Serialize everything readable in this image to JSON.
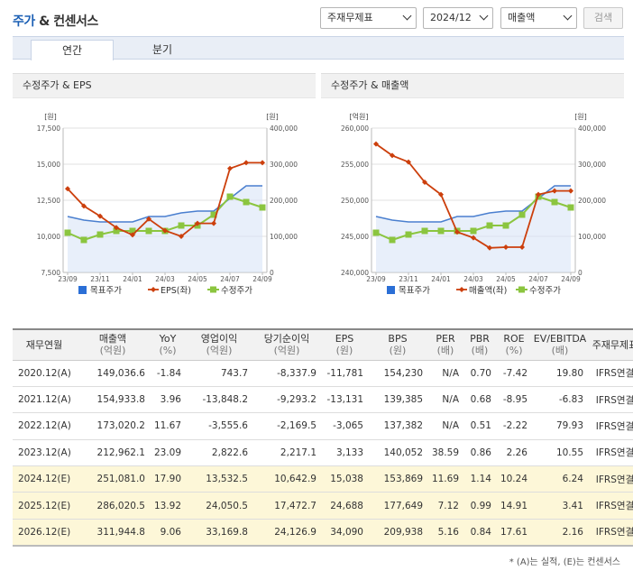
{
  "header": {
    "title_main": "주가",
    "title_rest": "& 컨센서스",
    "select_report": "주재무제표",
    "select_period": "2024/12",
    "select_metric": "매출액",
    "search_button": "검색"
  },
  "tabs": [
    {
      "label": "연간",
      "active": true
    },
    {
      "label": "분기",
      "active": false
    }
  ],
  "charts": [
    {
      "title": "수정주가 & EPS",
      "left_unit": "[원]",
      "right_unit": "[원]",
      "left_ticks": [
        "17,500",
        "15,000",
        "12,500",
        "10,000",
        "7,500"
      ],
      "right_ticks": [
        "400,000",
        "300,000",
        "200,000",
        "100,000",
        "0"
      ],
      "x_ticks": [
        "23/09",
        "23/11",
        "24/01",
        "24/03",
        "24/05",
        "24/07",
        "24/09"
      ],
      "legend": [
        "목표주가",
        "EPS(좌)",
        "수정주가"
      ]
    },
    {
      "title": "수정주가 & 매출액",
      "left_unit": "[억원]",
      "right_unit": "[원]",
      "left_ticks": [
        "260,000",
        "255,000",
        "250,000",
        "245,000",
        "240,000"
      ],
      "right_ticks": [
        "400,000",
        "300,000",
        "200,000",
        "100,000",
        "0"
      ],
      "x_ticks": [
        "23/09",
        "23/11",
        "24/01",
        "24/03",
        "24/05",
        "24/07",
        "24/09"
      ],
      "legend": [
        "목표주가",
        "매출액(좌)",
        "수정주가"
      ]
    }
  ],
  "chart_data": [
    {
      "type": "line",
      "title": "수정주가 & EPS",
      "y_left": {
        "label": "[원]",
        "range": [
          7500,
          17500
        ]
      },
      "y_right": {
        "label": "[원]",
        "range": [
          0,
          400000
        ]
      },
      "x": [
        "23/09",
        "23/10",
        "23/11",
        "23/12",
        "24/01",
        "24/02",
        "24/03",
        "24/04",
        "24/05",
        "24/06",
        "24/07",
        "24/08",
        "24/09"
      ],
      "series": [
        {
          "name": "목표주가",
          "axis": "right",
          "color": "#4a7fcf",
          "values": [
            155000,
            145000,
            140000,
            140000,
            140000,
            155000,
            155000,
            165000,
            170000,
            170000,
            205000,
            240000,
            240000
          ]
        },
        {
          "name": "EPS(좌)",
          "axis": "left",
          "color": "#cc3f0c",
          "values": [
            13300,
            12100,
            11400,
            10600,
            10100,
            11200,
            10400,
            10000,
            10900,
            10900,
            14700,
            15100,
            15100
          ]
        },
        {
          "name": "수정주가",
          "axis": "right",
          "color": "#8bc53f",
          "values": [
            110000,
            90000,
            105000,
            115000,
            115000,
            115000,
            115000,
            130000,
            130000,
            160000,
            210000,
            195000,
            180000
          ]
        }
      ]
    },
    {
      "type": "line",
      "title": "수정주가 & 매출액",
      "y_left": {
        "label": "[억원]",
        "range": [
          240000,
          260000
        ]
      },
      "y_right": {
        "label": "[원]",
        "range": [
          0,
          400000
        ]
      },
      "x": [
        "23/09",
        "23/10",
        "23/11",
        "23/12",
        "24/01",
        "24/02",
        "24/03",
        "24/04",
        "24/05",
        "24/06",
        "24/07",
        "24/08",
        "24/09"
      ],
      "series": [
        {
          "name": "목표주가",
          "axis": "right",
          "color": "#4a7fcf",
          "values": [
            155000,
            145000,
            140000,
            140000,
            140000,
            155000,
            155000,
            165000,
            170000,
            170000,
            205000,
            240000,
            240000
          ]
        },
        {
          "name": "매출액(좌)",
          "axis": "left",
          "color": "#cc3f0c",
          "values": [
            257800,
            256200,
            255300,
            252500,
            250800,
            245600,
            244800,
            243400,
            243500,
            243500,
            250800,
            251300,
            251300
          ]
        },
        {
          "name": "수정주가",
          "axis": "right",
          "color": "#8bc53f",
          "values": [
            110000,
            90000,
            105000,
            115000,
            115000,
            115000,
            115000,
            130000,
            130000,
            160000,
            210000,
            195000,
            180000
          ]
        }
      ]
    }
  ],
  "table": {
    "headers": [
      {
        "top": "재무연월",
        "unit": ""
      },
      {
        "top": "매출액",
        "unit": "(억원)"
      },
      {
        "top": "YoY",
        "unit": "(%)"
      },
      {
        "top": "영업이익",
        "unit": "(억원)"
      },
      {
        "top": "당기순이익",
        "unit": "(억원)"
      },
      {
        "top": "EPS",
        "unit": "(원)"
      },
      {
        "top": "BPS",
        "unit": "(원)"
      },
      {
        "top": "PER",
        "unit": "(배)"
      },
      {
        "top": "PBR",
        "unit": "(배)"
      },
      {
        "top": "ROE",
        "unit": "(%)"
      },
      {
        "top": "EV/EBITDA",
        "unit": "(배)"
      },
      {
        "top": "주재무제표",
        "unit": ""
      }
    ],
    "rows": [
      {
        "estimate": false,
        "cells": [
          "2020.12(A)",
          "149,036.6",
          "-1.84",
          "743.7",
          "-8,337.9",
          "-11,781",
          "154,230",
          "N/A",
          "0.70",
          "-7.42",
          "19.80",
          "IFRS연결"
        ]
      },
      {
        "estimate": false,
        "cells": [
          "2021.12(A)",
          "154,933.8",
          "3.96",
          "-13,848.2",
          "-9,293.2",
          "-13,131",
          "139,385",
          "N/A",
          "0.68",
          "-8.95",
          "-6.83",
          "IFRS연결"
        ]
      },
      {
        "estimate": false,
        "cells": [
          "2022.12(A)",
          "173,020.2",
          "11.67",
          "-3,555.6",
          "-2,169.5",
          "-3,065",
          "137,382",
          "N/A",
          "0.51",
          "-2.22",
          "79.93",
          "IFRS연결"
        ]
      },
      {
        "estimate": false,
        "cells": [
          "2023.12(A)",
          "212,962.1",
          "23.09",
          "2,822.6",
          "2,217.1",
          "3,133",
          "140,052",
          "38.59",
          "0.86",
          "2.26",
          "10.55",
          "IFRS연결"
        ]
      },
      {
        "estimate": true,
        "cells": [
          "2024.12(E)",
          "251,081.0",
          "17.90",
          "13,532.5",
          "10,642.9",
          "15,038",
          "153,869",
          "11.69",
          "1.14",
          "10.24",
          "6.24",
          "IFRS연결"
        ]
      },
      {
        "estimate": true,
        "cells": [
          "2025.12(E)",
          "286,020.5",
          "13.92",
          "24,050.5",
          "17,472.7",
          "24,688",
          "177,649",
          "7.12",
          "0.99",
          "14.91",
          "3.41",
          "IFRS연결"
        ]
      },
      {
        "estimate": true,
        "cells": [
          "2026.12(E)",
          "311,944.8",
          "9.06",
          "33,169.8",
          "24,126.9",
          "34,090",
          "209,938",
          "5.16",
          "0.84",
          "17.61",
          "2.16",
          "IFRS연결"
        ]
      }
    ]
  },
  "footnote": "* (A)는 실적, (E)는 컨센서스"
}
